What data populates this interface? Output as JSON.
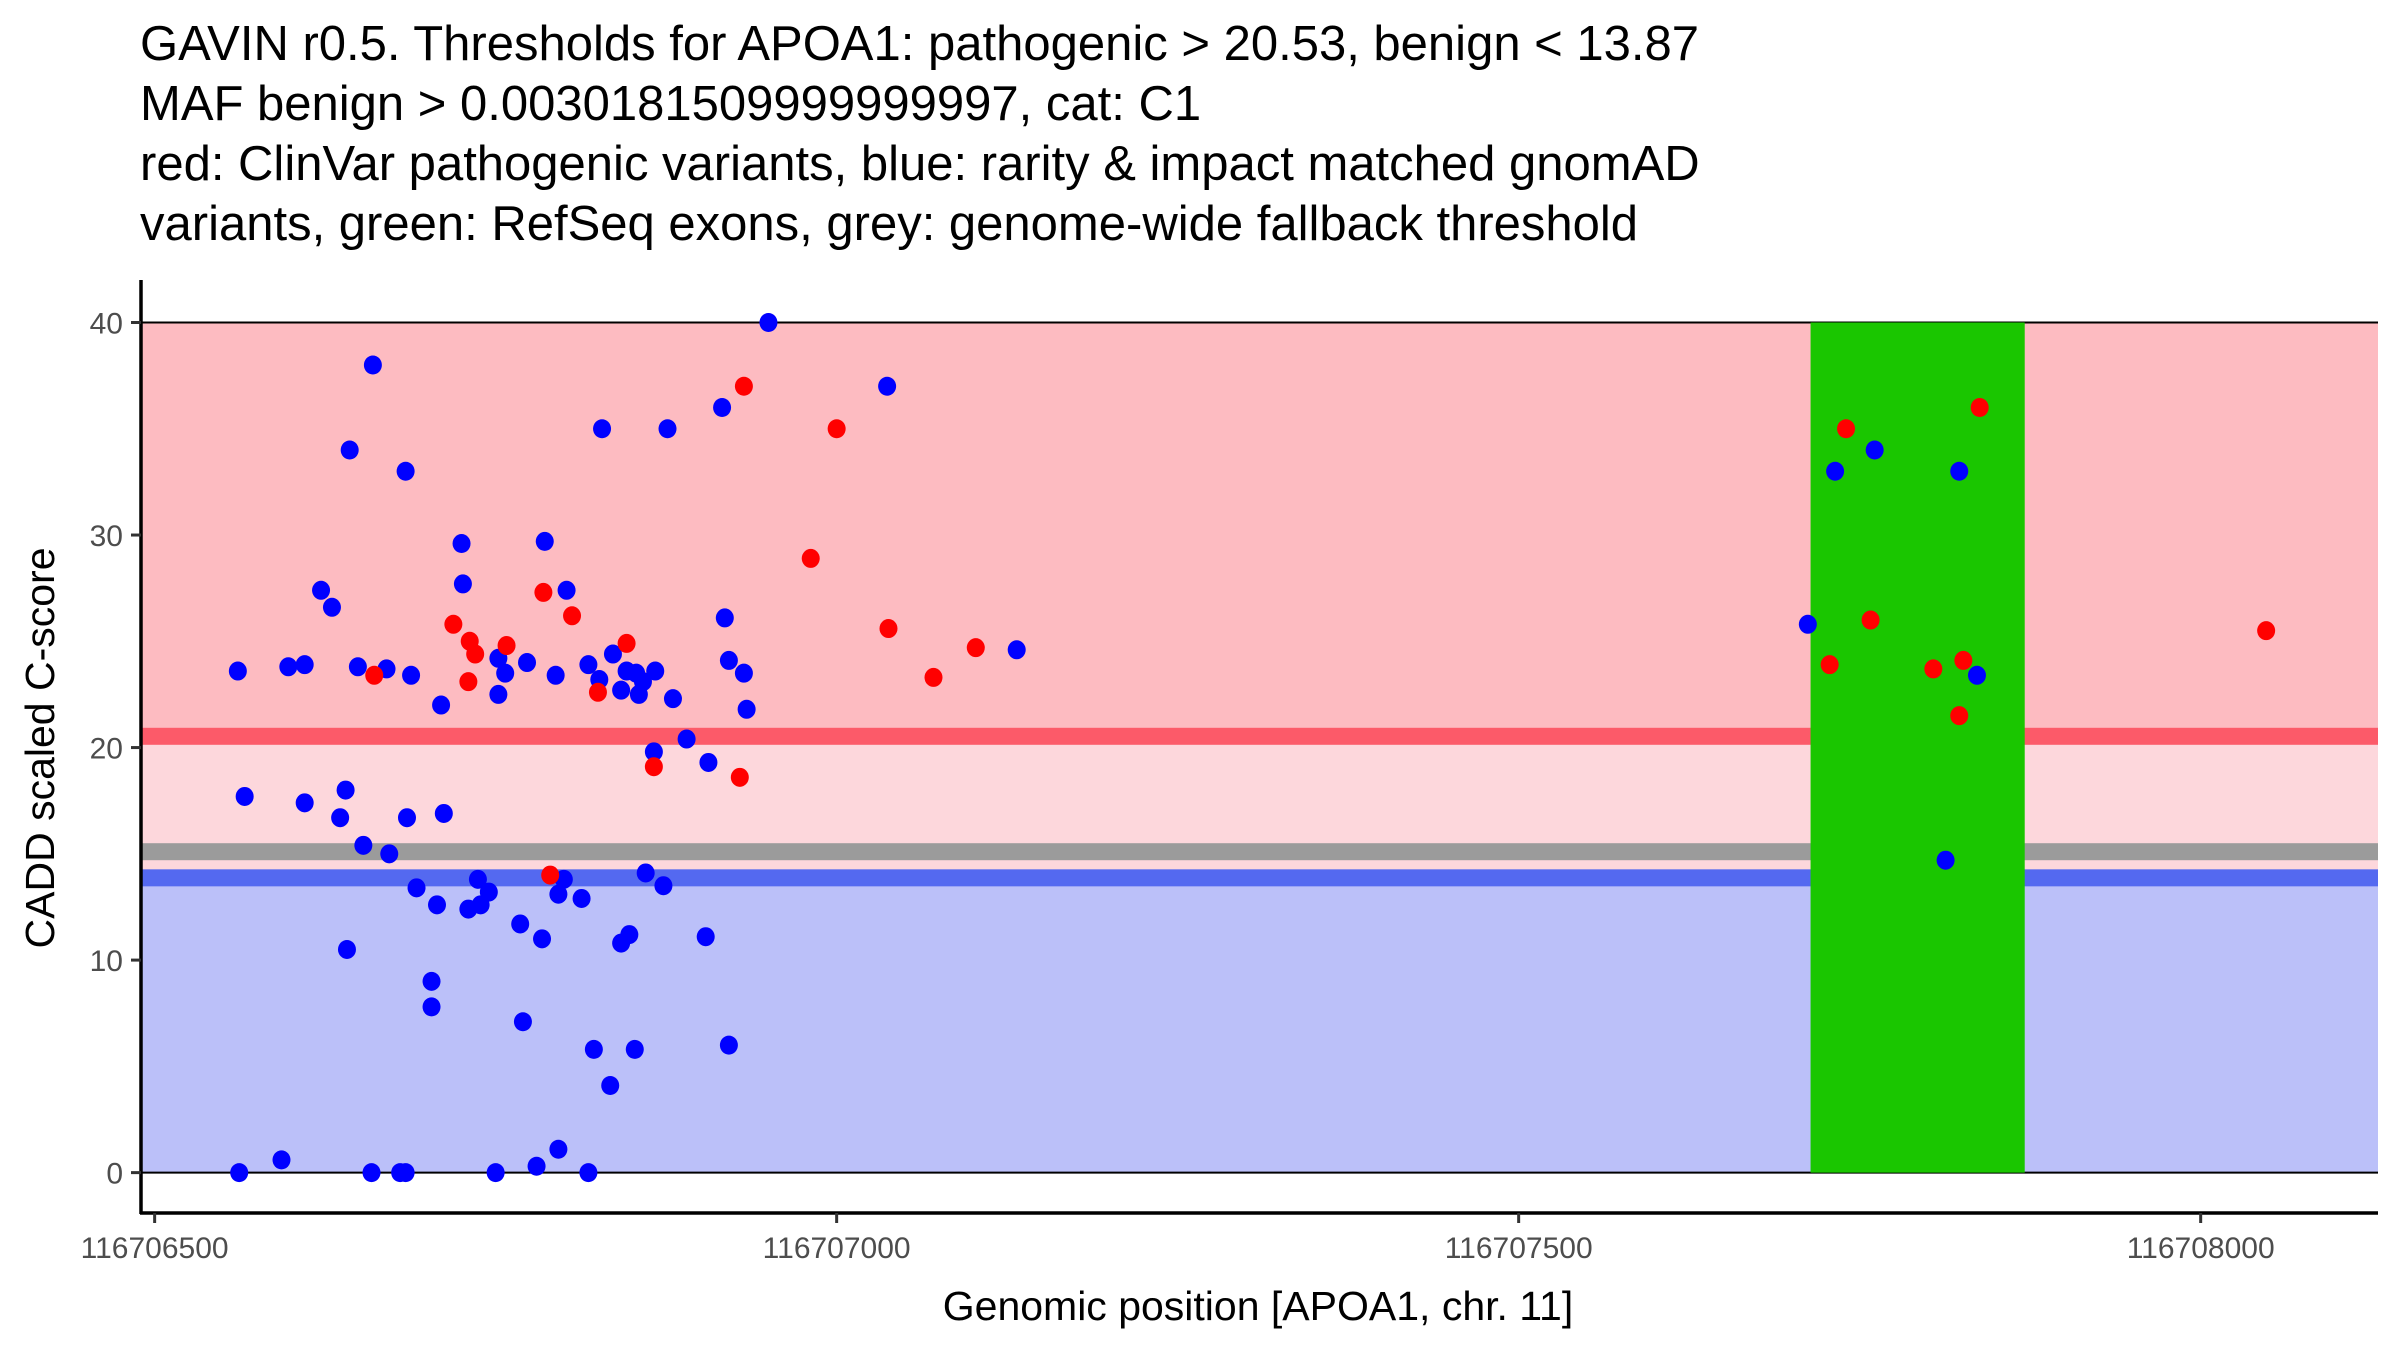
{
  "title_lines": [
    "GAVIN r0.5. Thresholds for APOA1: pathogenic > 20.53, benign < 13.87",
    "MAF benign > 0.0030181509999999997, cat: C1",
    "red: ClinVar pathogenic variants, blue: rarity & impact matched gnomAD",
    "variants, green: RefSeq exons, grey: genome-wide fallback threshold"
  ],
  "chart_data": {
    "type": "scatter",
    "title": "GAVIN r0.5. Thresholds for APOA1: pathogenic > 20.53, benign < 13.87",
    "xlabel": "Genomic position [APOA1, chr. 11]",
    "ylabel": "CADD scaled C-score",
    "xlim": [
      116706490,
      116708130
    ],
    "ylim": [
      -1.9,
      42
    ],
    "x_ticks": [
      116706500,
      116707000,
      116707500,
      116708000
    ],
    "x_tick_labels": [
      "116706500",
      "116707000",
      "116707500",
      "116708000"
    ],
    "y_ticks": [
      0,
      10,
      20,
      30,
      40
    ],
    "y_tick_labels": [
      "0",
      "10",
      "20",
      "30",
      "40"
    ],
    "grid": false,
    "legend": "none",
    "colors": {
      "pathogenic_region": "#fdbbc1",
      "vus_region": "#fdd7dc",
      "benign_region": "#bbc0f9",
      "pathogenic_threshold_line": "#fc5a69",
      "benign_threshold_line": "#5469f0",
      "fallback_threshold_line": "#9b9b9b",
      "exon": "#1ac600",
      "clinvar_point": "#ff0000",
      "gnomad_point": "#0000ff"
    },
    "thresholds": {
      "pathogenic": 20.53,
      "benign": 13.87,
      "fallback": 15.1,
      "region_top": 40,
      "region_bottom": 0
    },
    "exons": [
      {
        "start": 116707714,
        "end": 116707871
      }
    ],
    "series": [
      {
        "name": "gnomAD variants",
        "color": "#0000ff",
        "points": [
          [
            116706562,
            0
          ],
          [
            116706593,
            0.6
          ],
          [
            116706659,
            0
          ],
          [
            116706680,
            0
          ],
          [
            116706684,
            0
          ],
          [
            116706750,
            0
          ],
          [
            116706780,
            0.3
          ],
          [
            116706796,
            1.1
          ],
          [
            116706818,
            0
          ],
          [
            116706566,
            17.7
          ],
          [
            116706610,
            17.4
          ],
          [
            116706640,
            18.0
          ],
          [
            116706636,
            16.7
          ],
          [
            116706653,
            15.4
          ],
          [
            116706672,
            15.0
          ],
          [
            116706685,
            16.7
          ],
          [
            116706712,
            16.9
          ],
          [
            116706692,
            13.4
          ],
          [
            116706707,
            12.6
          ],
          [
            116706730,
            12.4
          ],
          [
            116706739,
            12.6
          ],
          [
            116706737,
            13.8
          ],
          [
            116706745,
            13.2
          ],
          [
            116706768,
            11.7
          ],
          [
            116706784,
            11.0
          ],
          [
            116706800,
            13.8
          ],
          [
            116706796,
            13.1
          ],
          [
            116706813,
            12.9
          ],
          [
            116706842,
            10.8
          ],
          [
            116706848,
            11.2
          ],
          [
            116706860,
            14.1
          ],
          [
            116706873,
            13.5
          ],
          [
            116706904,
            11.1
          ],
          [
            116706641,
            10.5
          ],
          [
            116706703,
            9.0
          ],
          [
            116706703,
            7.8
          ],
          [
            116706770,
            7.1
          ],
          [
            116706822,
            5.8
          ],
          [
            116706834,
            4.1
          ],
          [
            116706852,
            5.8
          ],
          [
            116706921,
            6.0
          ],
          [
            116706561,
            23.6
          ],
          [
            116706598,
            23.8
          ],
          [
            116706610,
            23.9
          ],
          [
            116706622,
            27.4
          ],
          [
            116706630,
            26.6
          ],
          [
            116706643,
            34.0
          ],
          [
            116706660,
            38.0
          ],
          [
            116706649,
            23.8
          ],
          [
            116706670,
            23.7
          ],
          [
            116706684,
            33.0
          ],
          [
            116706688,
            23.4
          ],
          [
            116706710,
            22.0
          ],
          [
            116706725,
            29.6
          ],
          [
            116706726,
            27.7
          ],
          [
            116706752,
            24.2
          ],
          [
            116706752,
            22.5
          ],
          [
            116706757,
            23.5
          ],
          [
            116706773,
            24.0
          ],
          [
            116706786,
            29.7
          ],
          [
            116706794,
            23.4
          ],
          [
            116706802,
            27.4
          ],
          [
            116706818,
            23.9
          ],
          [
            116706828,
            35.0
          ],
          [
            116706826,
            23.2
          ],
          [
            116706836,
            24.4
          ],
          [
            116706846,
            23.6
          ],
          [
            116706842,
            22.7
          ],
          [
            116706853,
            23.5
          ],
          [
            116706855,
            22.5
          ],
          [
            116706858,
            23.1
          ],
          [
            116706867,
            23.6
          ],
          [
            116706866,
            19.8
          ],
          [
            116706876,
            35.0
          ],
          [
            116706880,
            22.3
          ],
          [
            116706890,
            20.4
          ],
          [
            116706906,
            19.3
          ],
          [
            116706916,
            36.0
          ],
          [
            116706918,
            26.1
          ],
          [
            116706921,
            24.1
          ],
          [
            116706932,
            23.5
          ],
          [
            116706934,
            21.8
          ],
          [
            116706950,
            40.0
          ],
          [
            116707037,
            37.0
          ],
          [
            116707132,
            24.6
          ],
          [
            116707712,
            25.8
          ],
          [
            116707732,
            33.0
          ],
          [
            116707761,
            34.0
          ],
          [
            116707823,
            33.0
          ],
          [
            116707836,
            23.4
          ],
          [
            116707813,
            14.7
          ]
        ]
      },
      {
        "name": "ClinVar pathogenic variants",
        "color": "#ff0000",
        "points": [
          [
            116706661,
            23.4
          ],
          [
            116706719,
            25.8
          ],
          [
            116706731,
            25.0
          ],
          [
            116706735,
            24.4
          ],
          [
            116706730,
            23.1
          ],
          [
            116706758,
            24.8
          ],
          [
            116706785,
            27.3
          ],
          [
            116706806,
            26.2
          ],
          [
            116706825,
            22.6
          ],
          [
            116706846,
            24.9
          ],
          [
            116706866,
            19.1
          ],
          [
            116706790,
            14.0
          ],
          [
            116706932,
            37.0
          ],
          [
            116706929,
            18.6
          ],
          [
            116706981,
            28.9
          ],
          [
            116707000,
            35.0
          ],
          [
            116707038,
            25.6
          ],
          [
            116707071,
            23.3
          ],
          [
            116707102,
            24.7
          ],
          [
            116707740,
            35.0
          ],
          [
            116707838,
            36.0
          ],
          [
            116707758,
            26.0
          ],
          [
            116707728,
            23.9
          ],
          [
            116707804,
            23.7
          ],
          [
            116707826,
            24.1
          ],
          [
            116707823,
            21.5
          ],
          [
            116708048,
            25.5
          ]
        ]
      }
    ]
  }
}
